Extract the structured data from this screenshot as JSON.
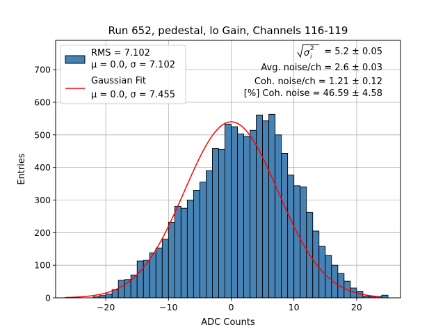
{
  "chart_data": {
    "type": "bar",
    "title": "Run 652, pedestal, lo Gain, Channels 116-119",
    "xlabel": "ADC Counts",
    "ylabel": "Entries",
    "xlim": [
      -28,
      27
    ],
    "ylim": [
      0,
      790
    ],
    "xticks": [
      -20,
      -10,
      0,
      10,
      20
    ],
    "yticks": [
      0,
      100,
      200,
      300,
      400,
      500,
      600,
      700
    ],
    "grid": true,
    "legend_position": "top-left",
    "histogram": {
      "name": "RMS = 7.102",
      "name_line2": "μ = 0.0, σ = 7.102",
      "color": "#4682b4",
      "edge_color": "#000000",
      "bin_start": -22,
      "bin_width": 1,
      "values": [
        3,
        7,
        12,
        25,
        54,
        56,
        70,
        113,
        115,
        138,
        153,
        180,
        232,
        281,
        275,
        300,
        330,
        355,
        390,
        458,
        456,
        533,
        525,
        503,
        495,
        514,
        561,
        543,
        563,
        500,
        443,
        377,
        344,
        340,
        262,
        205,
        158,
        130,
        100,
        75,
        51,
        30,
        20,
        5,
        4,
        4,
        8
      ]
    },
    "fit": {
      "name": "Gaussian Fit",
      "name_line2": "μ = 0.0, σ = 7.455",
      "color": "#ff0000",
      "mu": 0.0,
      "sigma": 7.455,
      "amplitude": 540,
      "x_range": [
        -26.5,
        23.5
      ]
    },
    "annotations": {
      "sqrt_value": "= 5.2 ± 0.05",
      "sigma_symbol": "σ",
      "sigma_subscript": "i",
      "sigma_superscript": "2",
      "line2": "Avg. noise/ch = 2.6 ± 0.03",
      "line3": "Coh. noise/ch = 1.21 ± 0.12",
      "line4": "[%] Coh. noise = 46.59 ± 4.58"
    }
  }
}
